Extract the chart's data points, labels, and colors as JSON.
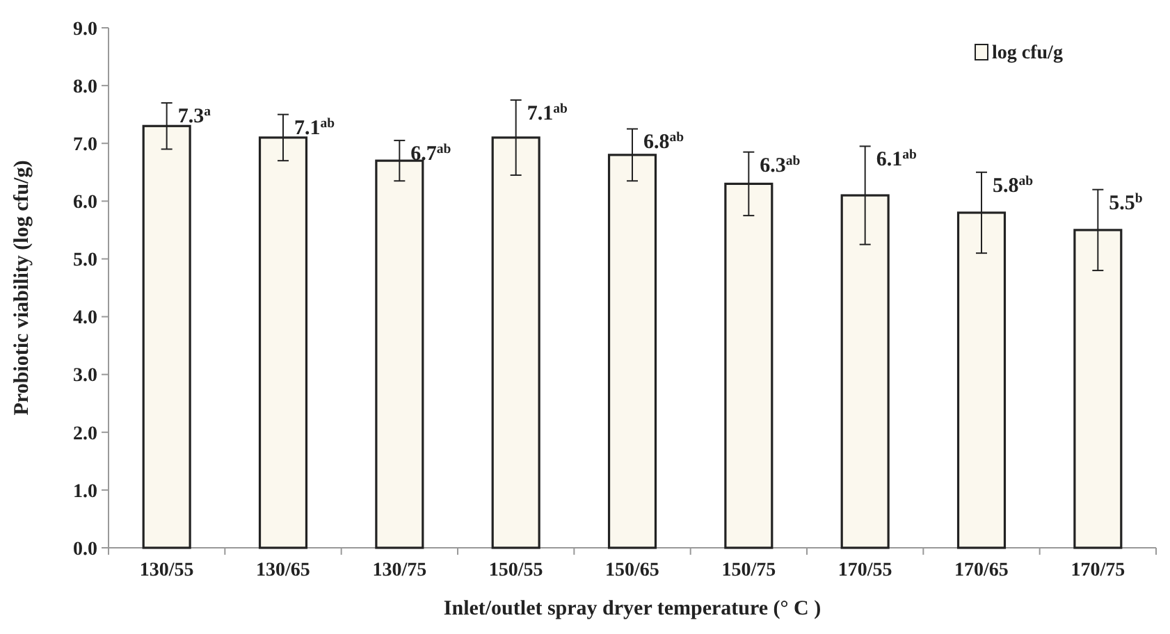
{
  "chart_data": {
    "type": "bar",
    "xlabel": "Inlet/outlet spray dryer temperature (° C )",
    "ylabel": "Probiotic viability (log cfu/g)",
    "categories": [
      "130/55",
      "130/65",
      "130/75",
      "150/55",
      "150/65",
      "150/75",
      "170/55",
      "170/65",
      "170/75"
    ],
    "series": [
      {
        "name": "log cfu/g",
        "color": "#fbf8ee",
        "values": [
          7.3,
          7.1,
          6.7,
          7.1,
          6.8,
          6.3,
          6.1,
          5.8,
          5.5
        ],
        "errors": [
          0.4,
          0.4,
          0.35,
          0.65,
          0.45,
          0.55,
          0.85,
          0.7,
          0.7
        ],
        "value_labels": [
          "7.3$^{a}$",
          "7.1$^{ab}$",
          "6.7$^{ab}$",
          "7.1$^{ab}$",
          "6.8$^{ab}$",
          "6.3$^{ab}$",
          "6.1$^{ab}$",
          "5.8$^{ab}$",
          "5.5$^{b}$"
        ]
      }
    ],
    "ylim": [
      0,
      9
    ],
    "yticks": [
      {
        "value": 0,
        "label": "0.0"
      },
      {
        "value": 1,
        "label": "1.0"
      },
      {
        "value": 2,
        "label": "2.0"
      },
      {
        "value": 3,
        "label": "3.0"
      },
      {
        "value": 4,
        "label": "4.0"
      },
      {
        "value": 5,
        "label": "5.0"
      },
      {
        "value": 6,
        "label": "6.0"
      },
      {
        "value": 7,
        "label": "7.0"
      },
      {
        "value": 8,
        "label": "8.0"
      },
      {
        "value": 9,
        "label": "9.0"
      }
    ],
    "grid": false,
    "legend": "top right"
  }
}
